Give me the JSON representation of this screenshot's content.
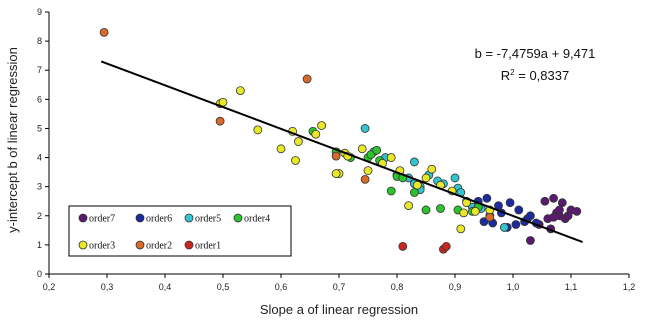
{
  "chart_data": {
    "type": "scatter",
    "xlabel": "Slope a of linear regression",
    "ylabel": "y-intercept b of linear regression",
    "xlim": [
      0.2,
      1.2
    ],
    "ylim": [
      0,
      9
    ],
    "x_ticks": [
      "0,2",
      "0,3",
      "0,4",
      "0,5",
      "0,6",
      "0,7",
      "0,8",
      "0,9",
      "1,0",
      "1,1",
      "1,2"
    ],
    "y_ticks": [
      "0",
      "1",
      "2",
      "3",
      "4",
      "5",
      "6",
      "7",
      "8",
      "9"
    ],
    "grid": false,
    "legend_position": "bottom-left",
    "annotation": {
      "equation": "b = -7,4759a + 9,471",
      "r2_prefix": "R",
      "r2_suffix": " = 0,8337"
    },
    "trendline": {
      "slope": -7.4759,
      "intercept": 9.471,
      "x_range": [
        0.29,
        1.12
      ],
      "color": "#000000"
    },
    "series": [
      {
        "name": "order7",
        "color": "#5a1a6e",
        "points": [
          [
            1.03,
            1.15
          ],
          [
            1.045,
            1.7
          ],
          [
            1.055,
            2.5
          ],
          [
            1.06,
            1.9
          ],
          [
            1.065,
            1.55
          ],
          [
            1.07,
            2.6
          ],
          [
            1.075,
            2.1
          ],
          [
            1.08,
            2.0
          ],
          [
            1.085,
            2.45
          ],
          [
            1.09,
            1.9
          ],
          [
            1.095,
            2.0
          ],
          [
            1.1,
            2.2
          ],
          [
            1.11,
            2.15
          ],
          [
            1.08,
            2.2
          ],
          [
            1.07,
            1.95
          ]
        ]
      },
      {
        "name": "order6",
        "color": "#1c2c9e",
        "points": [
          [
            0.94,
            2.5
          ],
          [
            0.95,
            1.8
          ],
          [
            0.955,
            2.6
          ],
          [
            0.965,
            1.75
          ],
          [
            0.98,
            2.1
          ],
          [
            0.99,
            1.6
          ],
          [
            0.995,
            2.45
          ],
          [
            1.005,
            1.7
          ],
          [
            1.01,
            2.2
          ],
          [
            1.02,
            1.8
          ],
          [
            1.025,
            1.9
          ],
          [
            1.03,
            2.0
          ],
          [
            1.04,
            1.75
          ],
          [
            0.975,
            2.35
          ]
        ]
      },
      {
        "name": "order5",
        "color": "#33c4d0",
        "points": [
          [
            0.745,
            5.0
          ],
          [
            0.76,
            4.2
          ],
          [
            0.78,
            4.0
          ],
          [
            0.8,
            3.4
          ],
          [
            0.82,
            3.3
          ],
          [
            0.83,
            3.85
          ],
          [
            0.84,
            3.0
          ],
          [
            0.855,
            3.4
          ],
          [
            0.87,
            3.2
          ],
          [
            0.88,
            3.1
          ],
          [
            0.9,
            3.3
          ],
          [
            0.905,
            2.95
          ],
          [
            0.91,
            2.8
          ],
          [
            0.92,
            2.5
          ],
          [
            0.93,
            2.3
          ],
          [
            0.945,
            2.25
          ],
          [
            0.96,
            2.0
          ],
          [
            0.985,
            1.6
          ],
          [
            0.84,
            2.9
          ],
          [
            0.83,
            3.1
          ]
        ]
      },
      {
        "name": "order4",
        "color": "#2bc42b",
        "points": [
          [
            0.655,
            4.9
          ],
          [
            0.695,
            4.2
          ],
          [
            0.72,
            4.0
          ],
          [
            0.75,
            4.0
          ],
          [
            0.755,
            4.1
          ],
          [
            0.765,
            4.25
          ],
          [
            0.77,
            3.9
          ],
          [
            0.8,
            3.35
          ],
          [
            0.81,
            3.3
          ],
          [
            0.79,
            2.85
          ],
          [
            0.83,
            2.8
          ],
          [
            0.85,
            2.2
          ],
          [
            0.875,
            2.25
          ],
          [
            0.905,
            2.2
          ],
          [
            0.93,
            2.15
          ],
          [
            0.94,
            2.3
          ]
        ]
      },
      {
        "name": "order3",
        "color": "#e8e828",
        "points": [
          [
            0.495,
            5.85
          ],
          [
            0.5,
            5.9
          ],
          [
            0.53,
            6.3
          ],
          [
            0.56,
            4.95
          ],
          [
            0.6,
            4.3
          ],
          [
            0.62,
            4.9
          ],
          [
            0.63,
            4.55
          ],
          [
            0.625,
            3.9
          ],
          [
            0.66,
            4.8
          ],
          [
            0.67,
            5.1
          ],
          [
            0.7,
            3.45
          ],
          [
            0.71,
            4.15
          ],
          [
            0.715,
            4.05
          ],
          [
            0.74,
            4.3
          ],
          [
            0.75,
            3.55
          ],
          [
            0.775,
            3.8
          ],
          [
            0.79,
            4.0
          ],
          [
            0.805,
            3.55
          ],
          [
            0.82,
            2.35
          ],
          [
            0.835,
            3.05
          ],
          [
            0.86,
            3.6
          ],
          [
            0.875,
            3.05
          ],
          [
            0.895,
            2.85
          ],
          [
            0.91,
            1.55
          ],
          [
            0.915,
            2.1
          ],
          [
            0.92,
            2.45
          ],
          [
            0.935,
            2.15
          ],
          [
            0.96,
            2.2
          ],
          [
            0.695,
            3.45
          ],
          [
            0.85,
            3.3
          ]
        ]
      },
      {
        "name": "order2",
        "color": "#d86a2a",
        "points": [
          [
            0.295,
            8.3
          ],
          [
            0.495,
            5.25
          ],
          [
            0.645,
            6.7
          ],
          [
            0.695,
            4.05
          ],
          [
            0.745,
            3.25
          ],
          [
            0.96,
            1.95
          ]
        ]
      },
      {
        "name": "order1",
        "color": "#c8281e",
        "points": [
          [
            0.81,
            0.95
          ],
          [
            0.88,
            0.85
          ],
          [
            0.885,
            0.95
          ]
        ]
      }
    ],
    "legend_rows": [
      [
        "order7",
        "order6",
        "order5",
        "order4"
      ],
      [
        "order3",
        "order2",
        "order1"
      ]
    ]
  }
}
